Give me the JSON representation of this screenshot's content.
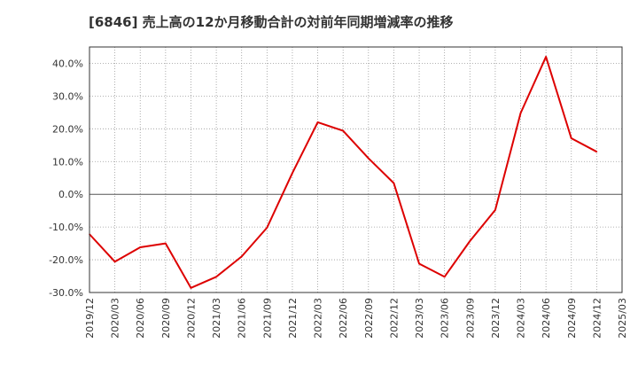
{
  "title": "[6846]  売上高の12か月移動合計の対前年同期増減率の推移",
  "chart_data": {
    "type": "line",
    "title": "[6846]  売上高の12か月移動合計の対前年同期増減率の推移",
    "xlabel": "",
    "ylabel": "",
    "ylim": [
      -30,
      45
    ],
    "y_ticks": [
      40,
      30,
      20,
      10,
      0,
      -10,
      -20,
      -30
    ],
    "y_tick_labels": [
      "40.0%",
      "30.0%",
      "20.0%",
      "10.0%",
      "0.0%",
      "-10.0%",
      "-20.0%",
      "-30.0%"
    ],
    "categories": [
      "2019/12",
      "2020/03",
      "2020/06",
      "2020/09",
      "2020/12",
      "2021/03",
      "2021/06",
      "2021/09",
      "2021/12",
      "2022/03",
      "2022/06",
      "2022/09",
      "2022/12",
      "2023/03",
      "2023/06",
      "2023/09",
      "2023/12",
      "2024/03",
      "2024/06",
      "2024/09",
      "2024/12",
      "2025/03"
    ],
    "series": [
      {
        "name": "対前年同期増減率",
        "color": "#dd0000",
        "values": [
          -12.2,
          -20.6,
          -16.2,
          -15.0,
          -28.6,
          -25.2,
          -19.0,
          -10.2,
          6.5,
          22.0,
          19.4,
          11.0,
          3.4,
          -21.2,
          -25.2,
          -14.3,
          -4.8,
          24.8,
          42.0,
          17.1,
          13.0,
          null
        ]
      }
    ],
    "grid": true
  }
}
